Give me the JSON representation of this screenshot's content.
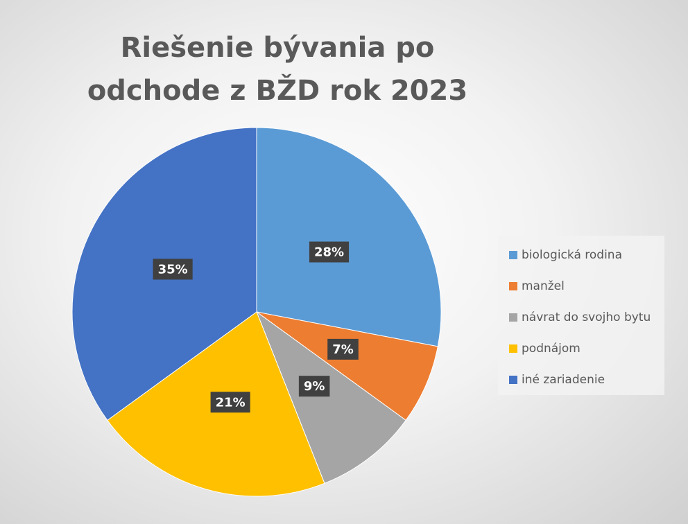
{
  "chart_data": {
    "type": "pie",
    "title": "Riešenie bývania po odchode z BŽD rok 2023",
    "categories": [
      "biologická rodina",
      "manžel",
      "návrat do svojho bytu",
      "podnájom",
      "iné zariadenie"
    ],
    "values": [
      28,
      7,
      9,
      21,
      35
    ],
    "value_labels": [
      "28%",
      "7%",
      "9%",
      "21%",
      "35%"
    ],
    "colors": [
      "#5b9bd5",
      "#ed7d31",
      "#a5a5a5",
      "#ffc000",
      "#4472c4"
    ],
    "legend": "right"
  }
}
